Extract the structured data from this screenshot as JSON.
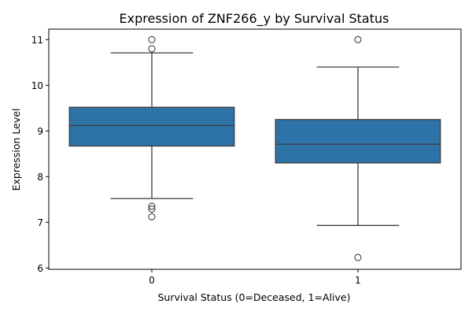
{
  "chart_data": {
    "type": "box",
    "title": "Expression of ZNF266_y by Survival Status",
    "xlabel": "Survival Status (0=Deceased, 1=Alive)",
    "ylabel": "Expression Level",
    "categories": [
      "0",
      "1"
    ],
    "ylim": [
      5.97,
      11.23
    ],
    "yticks": [
      6,
      7,
      8,
      9,
      10,
      11
    ],
    "grid": false,
    "box_color": "#2e73a8",
    "line_color": "#3d3d3d",
    "boxes": [
      {
        "category": "0",
        "whisker_low": 7.52,
        "q1": 8.67,
        "median": 9.12,
        "q3": 9.52,
        "whisker_high": 10.71,
        "outliers": [
          11.0,
          10.8,
          7.35,
          7.29,
          7.12
        ]
      },
      {
        "category": "1",
        "whisker_low": 6.93,
        "q1": 8.3,
        "median": 8.71,
        "q3": 9.25,
        "whisker_high": 10.4,
        "outliers": [
          11.0,
          6.23
        ]
      }
    ]
  }
}
